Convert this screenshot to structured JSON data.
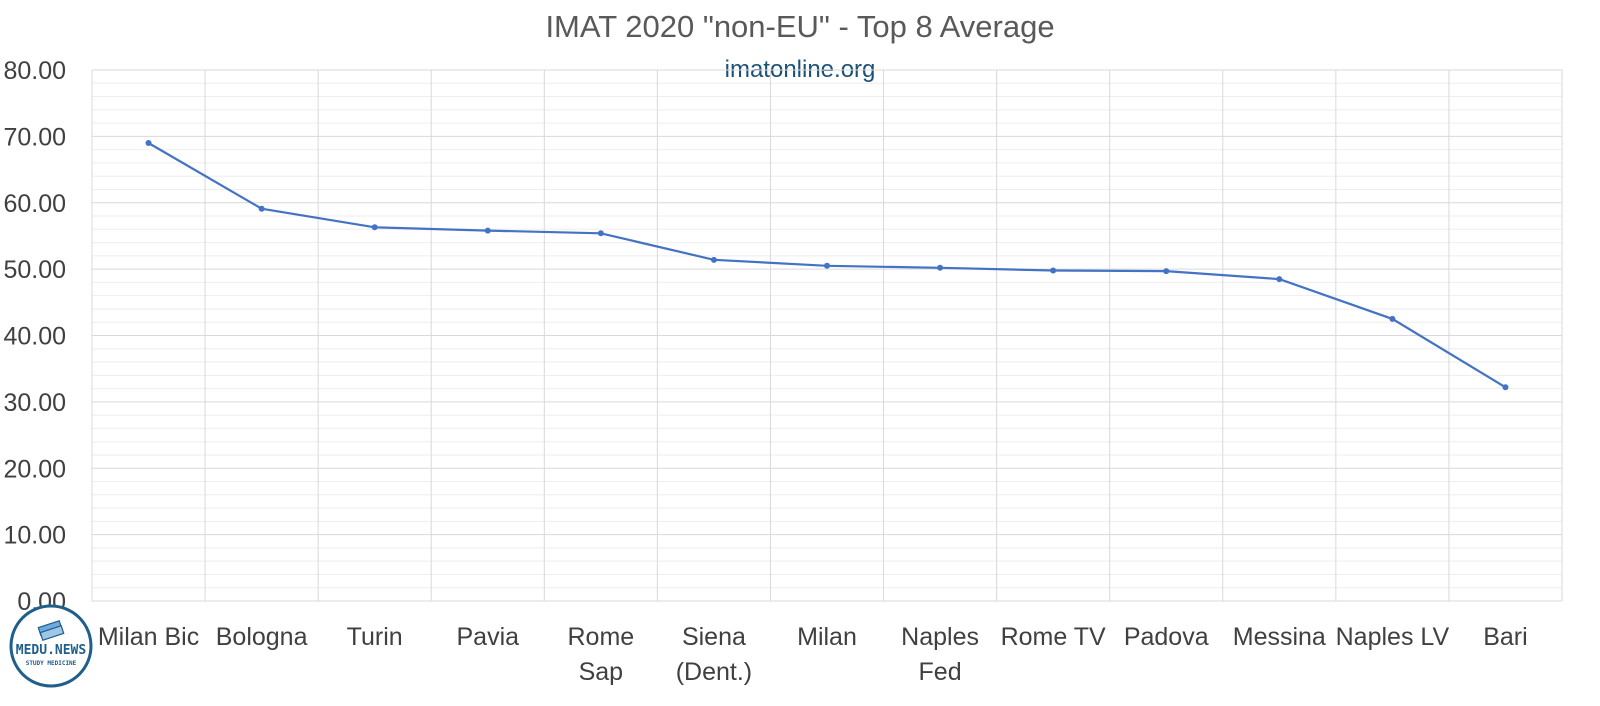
{
  "title": "IMAT 2020 \"non-EU\" - Top 8 Average",
  "subtitle": "imatonline.org",
  "logo": {
    "name": "MEDU.NEWS",
    "tagline": "STUDY MEDICINE"
  },
  "colors": {
    "series": "#4472c4",
    "subtitle": "#1a5276",
    "logo": "#1f5f8b"
  },
  "chart_data": {
    "type": "line",
    "title": "IMAT 2020 \"non-EU\" - Top 8 Average",
    "categories": [
      "Milan Bic",
      "Bologna",
      "Turin",
      "Pavia",
      "Rome Sap",
      "Siena (Dent.)",
      "Milan",
      "Naples Fed",
      "Rome TV",
      "Padova",
      "Messina",
      "Naples LV",
      "Bari"
    ],
    "category_lines": [
      [
        "Milan Bic"
      ],
      [
        "Bologna"
      ],
      [
        "Turin"
      ],
      [
        "Pavia"
      ],
      [
        "Rome",
        "Sap"
      ],
      [
        "Siena",
        "(Dent.)"
      ],
      [
        "Milan"
      ],
      [
        "Naples",
        "Fed"
      ],
      [
        "Rome TV"
      ],
      [
        "Padova"
      ],
      [
        "Messina"
      ],
      [
        "Naples LV"
      ],
      [
        "Bari"
      ]
    ],
    "values": [
      69.0,
      59.1,
      56.3,
      55.8,
      55.4,
      51.4,
      50.5,
      50.2,
      49.8,
      49.7,
      48.5,
      42.5,
      32.2
    ],
    "ylim": [
      0,
      80
    ],
    "yticks": [
      "0.00",
      "10.00",
      "20.00",
      "30.00",
      "40.00",
      "50.00",
      "60.00",
      "70.00",
      "80.00"
    ],
    "xlabel": "",
    "ylabel": "",
    "grid": true,
    "legend": "none",
    "markers": true
  }
}
